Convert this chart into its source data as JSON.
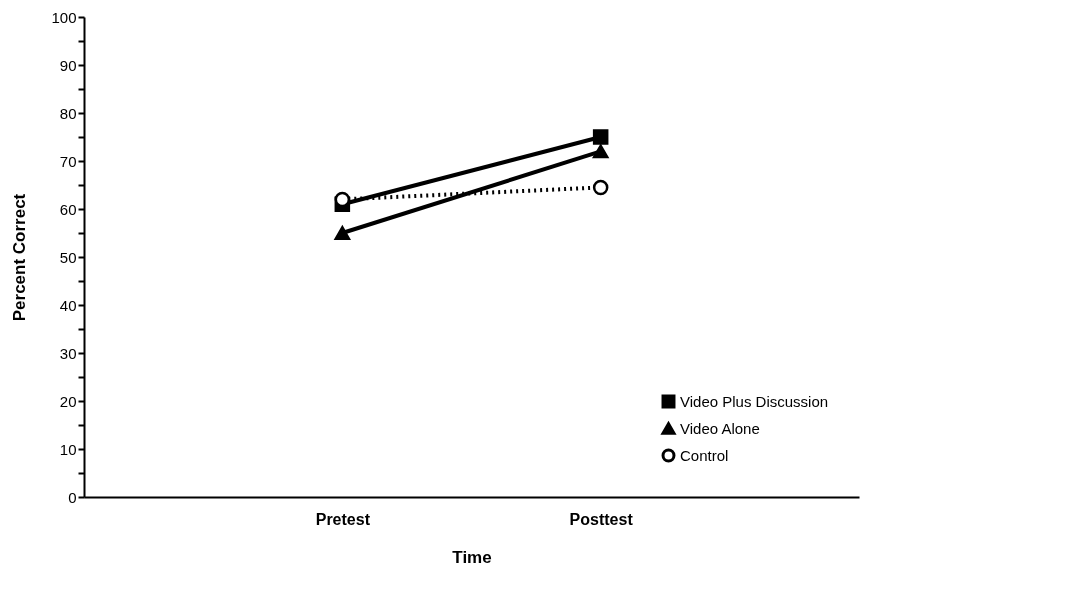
{
  "chart_data": {
    "type": "line",
    "xlabel": "Time",
    "ylabel": "Percent  Correct",
    "categories": [
      "Pretest",
      "Posttest"
    ],
    "ylim": [
      0,
      100
    ],
    "yticks": [
      0,
      {
        "value": 5,
        "label": null
      },
      10,
      {
        "value": 15,
        "label": null
      },
      20,
      {
        "value": 25,
        "label": null
      },
      30,
      {
        "value": 35,
        "label": null
      },
      40,
      {
        "value": 45,
        "label": null
      },
      50,
      {
        "value": 55,
        "label": null
      },
      60,
      {
        "value": 65,
        "label": null
      },
      70,
      {
        "value": 75,
        "label": null
      },
      80,
      {
        "value": 85,
        "label": null
      },
      90,
      {
        "value": 95,
        "label": null
      },
      100
    ],
    "grid": false,
    "legend": "bottom right",
    "series": [
      {
        "name": "Video Plus Discussion",
        "color": "#000000",
        "marker": "square",
        "line_style": "solid",
        "values": [
          61,
          75
        ]
      },
      {
        "name": "Video Alone",
        "color": "#000000",
        "marker": "triangle",
        "line_style": "solid",
        "values": [
          55,
          72
        ]
      },
      {
        "name": "Control",
        "color": "#000000",
        "marker": "circle",
        "line_style": "dotted",
        "values": [
          62,
          64.5
        ]
      }
    ]
  }
}
